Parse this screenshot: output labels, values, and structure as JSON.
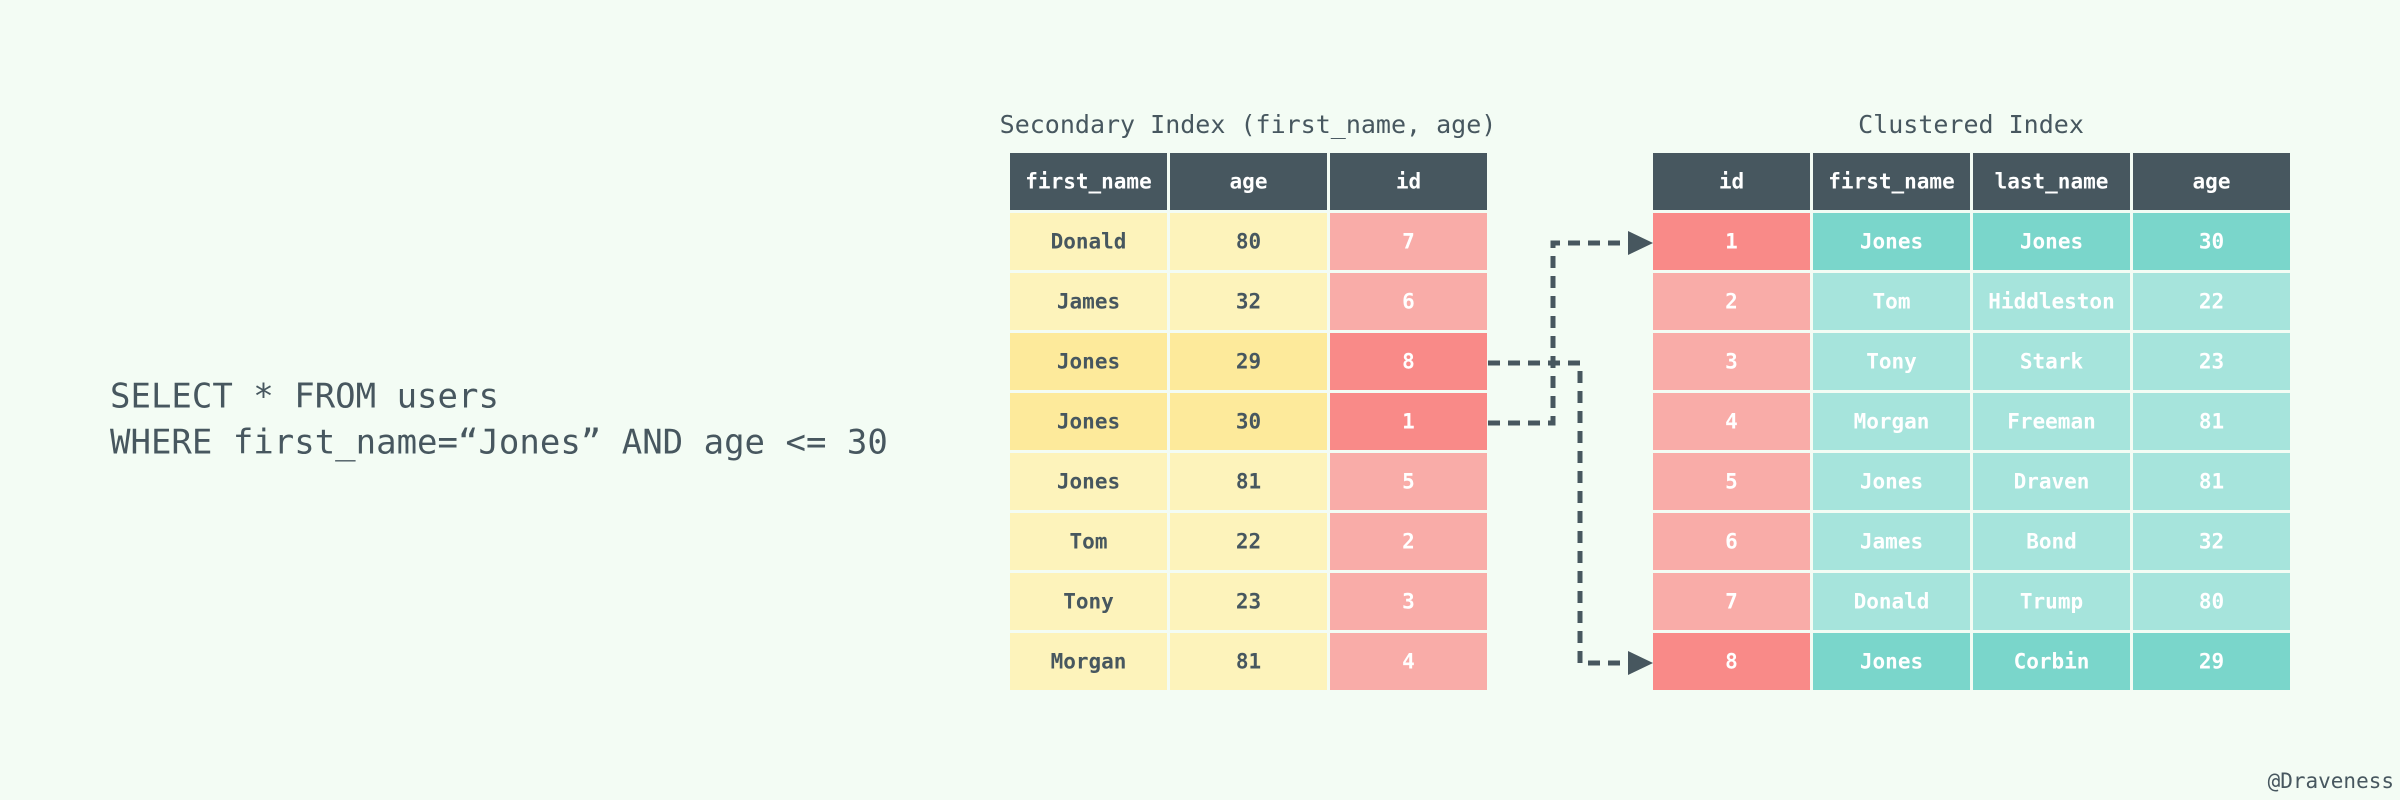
{
  "query": {
    "lines": [
      "SELECT * FROM users",
      "WHERE first_name=“Jones” AND age <= 30"
    ]
  },
  "secondary_index": {
    "title": "Secondary Index (first_name, age)",
    "columns": [
      "first_name",
      "age",
      "id"
    ],
    "rows": [
      [
        "Donald",
        "80",
        "7"
      ],
      [
        "James",
        "32",
        "6"
      ],
      [
        "Jones",
        "29",
        "8"
      ],
      [
        "Jones",
        "30",
        "1"
      ],
      [
        "Jones",
        "81",
        "5"
      ],
      [
        "Tom",
        "22",
        "2"
      ],
      [
        "Tony",
        "23",
        "3"
      ],
      [
        "Morgan",
        "81",
        "4"
      ]
    ],
    "highlighted_rows": [
      2,
      3
    ]
  },
  "clustered_index": {
    "title": "Clustered Index",
    "columns": [
      "id",
      "first_name",
      "last_name",
      "age"
    ],
    "rows": [
      [
        "1",
        "Jones",
        "Jones",
        "30"
      ],
      [
        "2",
        "Tom",
        "Hiddleston",
        "22"
      ],
      [
        "3",
        "Tony",
        "Stark",
        "23"
      ],
      [
        "4",
        "Morgan",
        "Freeman",
        "81"
      ],
      [
        "5",
        "Jones",
        "Draven",
        "81"
      ],
      [
        "6",
        "James",
        "Bond",
        "32"
      ],
      [
        "7",
        "Donald",
        "Trump",
        "80"
      ],
      [
        "8",
        "Jones",
        "Corbin",
        "29"
      ]
    ],
    "highlighted_rows": [
      0,
      7
    ]
  },
  "credit": "@Draveness"
}
